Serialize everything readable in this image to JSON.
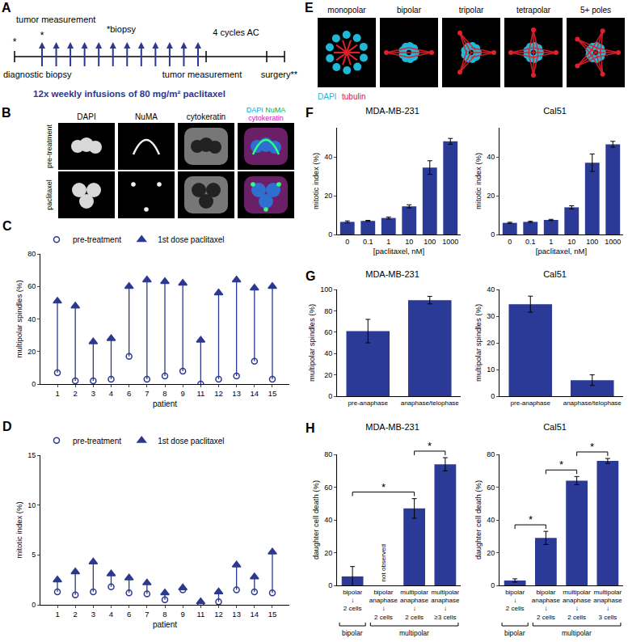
{
  "panel_a": {
    "label": "A",
    "top_left": "tumor measurement",
    "asterisks": [
      "*",
      "*"
    ],
    "biopsy": "*biopsy",
    "diagnostic": "diagnostic biopsy",
    "ac": "4 cycles AC",
    "tumor_end": "tumor measurement",
    "surgery": "surgery**",
    "infusions_text": "12x weekly infusions of 80 mg/m² paclitaxel",
    "infusions": 12,
    "color": "#2b3990"
  },
  "panel_b": {
    "label": "B",
    "channels": [
      "DAPI",
      "NuMA",
      "cytokeratin"
    ],
    "merge": [
      {
        "text": "DAPI",
        "color": "#00a6d6"
      },
      {
        "text": "NuMA",
        "color": "#00b050"
      },
      {
        "text": "cytokeratin",
        "color": "#d020c0"
      }
    ],
    "rows": [
      "pre-treatment",
      "paclitaxel"
    ]
  },
  "panel_e": {
    "label": "E",
    "types": [
      "monopolar",
      "bipolar",
      "tripolar",
      "tetrapolar",
      "5+ poles"
    ],
    "legend": [
      {
        "text": "DAPI",
        "color": "#20b8d8"
      },
      {
        "text": "tubulin",
        "color": "#e0202a"
      }
    ]
  },
  "chart_data": [
    {
      "panel": "C",
      "type": "scatter",
      "categories": [
        "1",
        "2",
        "3",
        "4",
        "6",
        "7",
        "8",
        "9",
        "11",
        "12",
        "13",
        "14",
        "15"
      ],
      "series": [
        {
          "name": "pre-treatment",
          "marker": "circle-open",
          "color": "#2b3990",
          "values": [
            7,
            2,
            2,
            3,
            17,
            3,
            5,
            8,
            0,
            3,
            5,
            14,
            3
          ]
        },
        {
          "name": "1st dose paclitaxel",
          "marker": "triangle-up",
          "color": "#2b3990",
          "values": [
            51,
            48,
            26,
            28,
            60,
            64,
            63,
            62,
            27,
            56,
            64,
            59,
            60
          ]
        }
      ],
      "x_label": "patient",
      "y_label": "multipolar spindles (%)",
      "ylim": [
        0,
        80
      ],
      "yticks": [
        0,
        20,
        40,
        60,
        80
      ],
      "legend": "top",
      "grid": false
    },
    {
      "panel": "D",
      "type": "scatter",
      "categories": [
        "1",
        "2",
        "3",
        "4",
        "6",
        "7",
        "8",
        "9",
        "11",
        "12",
        "13",
        "14",
        "15"
      ],
      "series": [
        {
          "name": "pre-treatment",
          "marker": "circle-open",
          "color": "#2b3990",
          "values": [
            1.3,
            1.0,
            1.3,
            1.8,
            1.2,
            1.1,
            0.5,
            1.5,
            0.1,
            0.3,
            1.5,
            1.3,
            1.2
          ]
        },
        {
          "name": "1st dose paclitaxel",
          "marker": "triangle-up",
          "color": "#2b3990",
          "values": [
            2.5,
            3.3,
            4.3,
            3.1,
            2.7,
            2.2,
            1.2,
            1.7,
            0.3,
            1.3,
            4.0,
            2.8,
            5.3
          ]
        }
      ],
      "x_label": "patient",
      "y_label": "mitotic index (%)",
      "ylim": [
        0,
        15
      ],
      "yticks": [
        0,
        5,
        10,
        15
      ],
      "legend": "top",
      "grid": false
    },
    {
      "panel": "F",
      "type": "bar",
      "title": "MDA-MB-231",
      "categories": [
        "0",
        "0.1",
        "1",
        "10",
        "100",
        "1000"
      ],
      "values": [
        6.5,
        7,
        8.5,
        14.5,
        34.5,
        48
      ],
      "errors": [
        0.5,
        0.3,
        0.5,
        0.8,
        3.5,
        1.5
      ],
      "color": "#2b3a97",
      "x_label": "[paclitaxel, nM]",
      "y_label": "mitotic index (%)",
      "ylim": [
        0,
        55
      ],
      "yticks": [
        0,
        20,
        40
      ]
    },
    {
      "type": "bar",
      "title": "Cal51",
      "categories": [
        "0",
        "0.1",
        "1",
        "10",
        "100",
        "1000"
      ],
      "values": [
        6,
        6.5,
        7.5,
        14,
        37,
        46.5
      ],
      "errors": [
        0.3,
        0.3,
        0.3,
        0.8,
        4.5,
        1.5
      ],
      "color": "#2b3a97",
      "x_label": "[paclitaxel, nM]",
      "y_label": "mitotic index (%)",
      "ylim": [
        0,
        55
      ],
      "yticks": [
        0,
        20,
        40
      ]
    },
    {
      "panel": "G",
      "type": "bar",
      "title": "MDA-MB-231",
      "categories": [
        "pre-anaphase",
        "anaphase/telophase"
      ],
      "values": [
        61,
        90
      ],
      "errors": [
        11,
        3.5
      ],
      "color": "#2b3a97",
      "y_label": "multipolar spindles (%)",
      "ylim": [
        0,
        100
      ],
      "yticks": [
        0,
        20,
        40,
        60,
        80,
        100
      ]
    },
    {
      "type": "bar",
      "title": "Cal51",
      "categories": [
        "pre-anaphase",
        "anaphase/telophase"
      ],
      "values": [
        34.5,
        6
      ],
      "errors": [
        3,
        2
      ],
      "color": "#2b3a97",
      "y_label": "multipolar spindles (%)",
      "ylim": [
        0,
        40
      ],
      "yticks": [
        0,
        10,
        20,
        30,
        40
      ]
    },
    {
      "panel": "H",
      "type": "bar",
      "title": "MDA-MB-231",
      "categories": [
        "bipolar\n↓\n2 cells",
        "bipolar\nanaphase\n↓\n2 cells",
        "multipolar\nanaphase\n↓\n2 cells",
        "multipolar\nanaphase\n↓\n≥3 cells"
      ],
      "values": [
        5.5,
        null,
        47,
        74
      ],
      "errors": [
        6,
        null,
        6,
        4
      ],
      "color": "#2b3a97",
      "y_label": "daughter cell death (%)",
      "ylim": [
        0,
        80
      ],
      "yticks": [
        0,
        20,
        40,
        60,
        80
      ],
      "annotations": [
        {
          "text": "not observed",
          "category": 1
        }
      ],
      "significance": [
        {
          "text": "*",
          "from": 0,
          "to": 2
        },
        {
          "text": "*",
          "from": 2,
          "to": 3
        }
      ],
      "groups": [
        {
          "label": "bipolar",
          "from": 0,
          "to": 0
        },
        {
          "label": "multipolar",
          "from": 1,
          "to": 3
        }
      ]
    },
    {
      "type": "bar",
      "title": "Cal51",
      "categories": [
        "bipolar\n↓\n2 cells",
        "bipolar\nanaphase\n↓\n2 cells",
        "multipolar\nanaphase\n↓\n2 cells",
        "multipolar\nanaphase\n↓\n3 cells"
      ],
      "values": [
        3,
        29,
        64,
        76
      ],
      "errors": [
        1,
        4,
        2.5,
        1.5
      ],
      "color": "#2b3a97",
      "y_label": "daughter cell death (%)",
      "ylim": [
        0,
        80
      ],
      "yticks": [
        0,
        20,
        40,
        60,
        80
      ],
      "significance": [
        {
          "text": "*",
          "from": 0,
          "to": 1
        },
        {
          "text": "*",
          "from": 1,
          "to": 2
        },
        {
          "text": "*",
          "from": 2,
          "to": 3
        }
      ],
      "groups": [
        {
          "label": "bipolar",
          "from": 0,
          "to": 0
        },
        {
          "label": "multipolar",
          "from": 1,
          "to": 3
        }
      ]
    }
  ]
}
